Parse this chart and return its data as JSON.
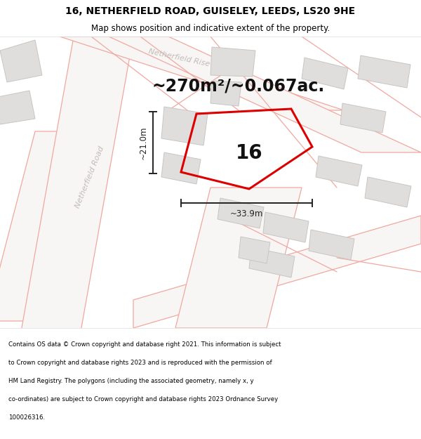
{
  "title": "16, NETHERFIELD ROAD, GUISELEY, LEEDS, LS20 9HE",
  "subtitle": "Map shows position and indicative extent of the property.",
  "area_text": "~270m²/~0.067ac.",
  "property_number": "16",
  "dim_vertical": "~21.0m",
  "dim_horizontal": "~33.9m",
  "footer": "Contains OS data © Crown copyright and database right 2021. This information is subject to Crown copyright and database rights 2023 and is reproduced with the permission of HM Land Registry. The polygons (including the associated geometry, namely x, y co-ordinates) are subject to Crown copyright and database rights 2023 Ordnance Survey 100026316.",
  "bg_color": "#f8f8f8",
  "map_bg": "#ffffff",
  "road_fill": "#ffffff",
  "road_line": "#f0a8a0",
  "highlight_color": "#dd0000",
  "building_fill": "#e0dedd",
  "building_stroke": "#c8c5c2",
  "title_bg": "#ffffff",
  "footer_bg": "#ffffff",
  "street_label_color": "#c0bcb8",
  "dim_color": "#222222",
  "figsize": [
    6.0,
    6.25
  ],
  "dpi": 100,
  "title_fontsize": 10,
  "subtitle_fontsize": 8.5,
  "area_fontsize": 17,
  "propnum_fontsize": 20,
  "dim_fontsize": 8.5,
  "street_fontsize": 8,
  "footer_fontsize": 6.2
}
